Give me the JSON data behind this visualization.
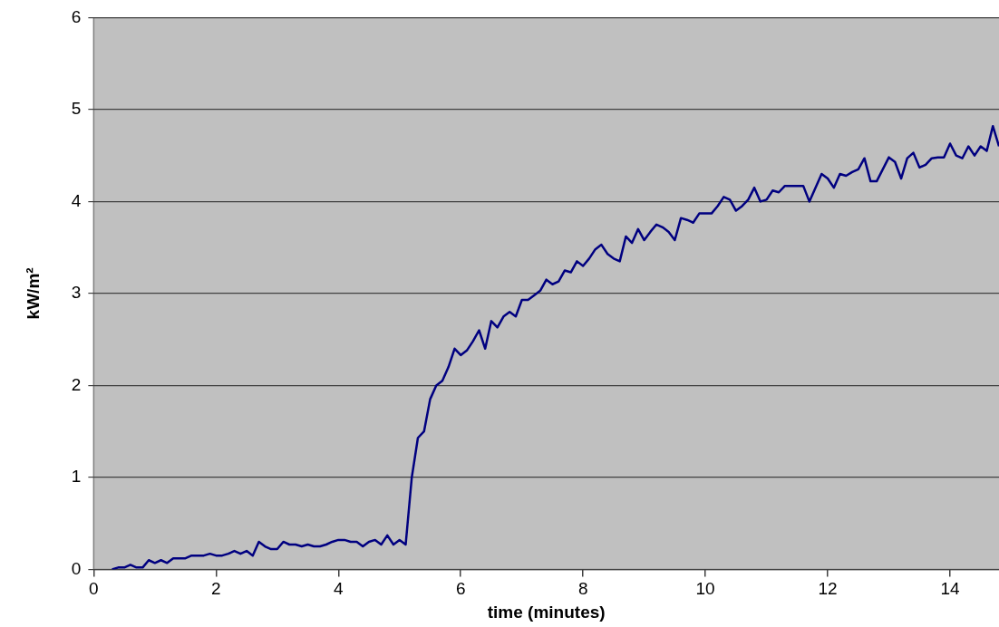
{
  "chart_data": {
    "type": "line",
    "xlabel": "time (minutes)",
    "ylabel": "kW/m²",
    "x": [
      0.3,
      0.4,
      0.5,
      0.6,
      0.7,
      0.8,
      0.9,
      1.0,
      1.1,
      1.2,
      1.3,
      1.5,
      1.6,
      1.8,
      1.9,
      2.0,
      2.1,
      2.2,
      2.3,
      2.4,
      2.5,
      2.6,
      2.7,
      2.8,
      2.9,
      3.0,
      3.1,
      3.2,
      3.3,
      3.4,
      3.5,
      3.6,
      3.7,
      3.8,
      3.9,
      4.0,
      4.1,
      4.2,
      4.3,
      4.4,
      4.5,
      4.6,
      4.7,
      4.8,
      4.9,
      5.0,
      5.1,
      5.2,
      5.3,
      5.4,
      5.5,
      5.6,
      5.7,
      5.8,
      5.9,
      6.0,
      6.1,
      6.2,
      6.3,
      6.4,
      6.5,
      6.6,
      6.7,
      6.8,
      6.9,
      7.0,
      7.1,
      7.2,
      7.3,
      7.4,
      7.5,
      7.6,
      7.7,
      7.8,
      7.9,
      8.0,
      8.1,
      8.2,
      8.3,
      8.4,
      8.5,
      8.6,
      8.7,
      8.8,
      8.9,
      9.0,
      9.1,
      9.2,
      9.3,
      9.4,
      9.5,
      9.6,
      9.7,
      9.8,
      9.9,
      10.0,
      10.1,
      10.2,
      10.3,
      10.4,
      10.5,
      10.6,
      10.7,
      10.8,
      10.9,
      11.0,
      11.1,
      11.2,
      11.3,
      11.4,
      11.5,
      11.6,
      11.7,
      11.8,
      11.9,
      12.0,
      12.1,
      12.2,
      12.3,
      12.4,
      12.5,
      12.6,
      12.7,
      12.8,
      12.9,
      13.0,
      13.1,
      13.2,
      13.3,
      13.4,
      13.5,
      13.6,
      13.7,
      13.8,
      13.9,
      14.0,
      14.1,
      14.2,
      14.3,
      14.4,
      14.5,
      14.6,
      14.7,
      14.8
    ],
    "series": [
      {
        "color": "#000080",
        "values": [
          0,
          0.02,
          0.02,
          0.05,
          0.02,
          0.02,
          0.1,
          0.07,
          0.1,
          0.07,
          0.12,
          0.12,
          0.15,
          0.15,
          0.17,
          0.15,
          0.15,
          0.17,
          0.2,
          0.17,
          0.2,
          0.15,
          0.3,
          0.25,
          0.22,
          0.22,
          0.3,
          0.27,
          0.27,
          0.25,
          0.27,
          0.25,
          0.25,
          0.27,
          0.3,
          0.32,
          0.32,
          0.3,
          0.3,
          0.25,
          0.3,
          0.32,
          0.27,
          0.37,
          0.27,
          0.32,
          0.27,
          1.0,
          1.43,
          1.5,
          1.85,
          2.0,
          2.05,
          2.2,
          2.4,
          2.33,
          2.38,
          2.48,
          2.6,
          2.4,
          2.7,
          2.63,
          2.75,
          2.8,
          2.75,
          2.93,
          2.93,
          2.98,
          3.03,
          3.15,
          3.1,
          3.13,
          3.25,
          3.23,
          3.35,
          3.3,
          3.38,
          3.48,
          3.53,
          3.43,
          3.38,
          3.35,
          3.62,
          3.55,
          3.7,
          3.58,
          3.67,
          3.75,
          3.72,
          3.67,
          3.58,
          3.82,
          3.8,
          3.77,
          3.87,
          3.87,
          3.87,
          3.95,
          4.05,
          4.02,
          3.9,
          3.95,
          4.02,
          4.15,
          4.0,
          4.02,
          4.12,
          4.1,
          4.17,
          4.17,
          4.17,
          4.17,
          4.0,
          4.15,
          4.3,
          4.25,
          4.15,
          4.3,
          4.28,
          4.32,
          4.35,
          4.47,
          4.22,
          4.22,
          4.35,
          4.48,
          4.43,
          4.25,
          4.47,
          4.53,
          4.37,
          4.4,
          4.47,
          4.48,
          4.48,
          4.63,
          4.5,
          4.47,
          4.6,
          4.5,
          4.6,
          4.55,
          4.82,
          4.6
        ]
      }
    ],
    "xlim": [
      0,
      14.8
    ],
    "xticks": [
      0,
      2,
      4,
      6,
      8,
      10,
      12,
      14
    ],
    "ylim": [
      0,
      6
    ],
    "yticks": [
      0,
      1,
      2,
      3,
      4,
      5,
      6
    ],
    "grid": "y",
    "legend": false,
    "marker": "none",
    "line_style": "solid"
  }
}
